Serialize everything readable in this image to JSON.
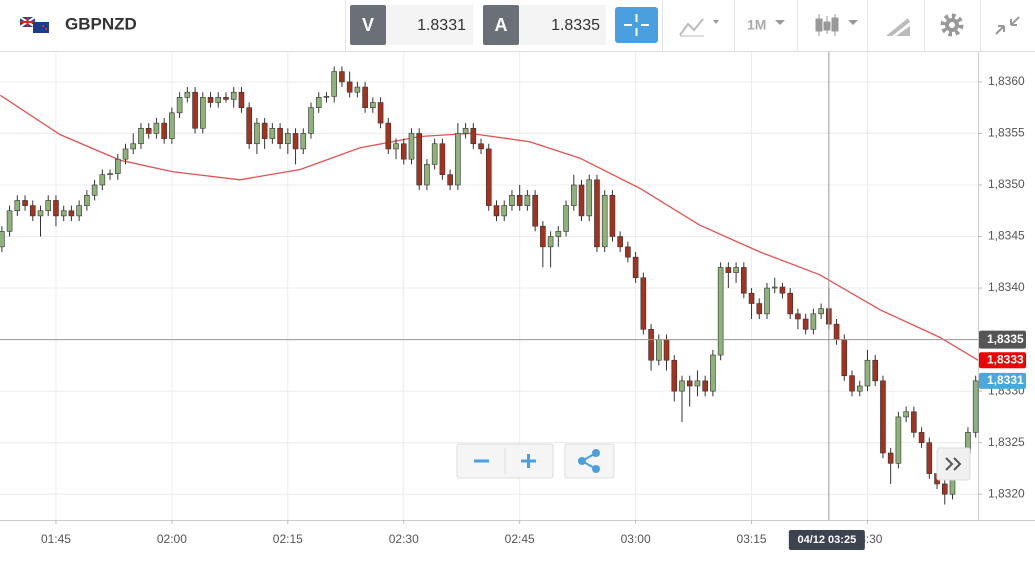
{
  "header": {
    "symbol": "GBPNZD",
    "bid": {
      "label": "V",
      "value": "1.8331"
    },
    "ask": {
      "label": "A",
      "value": "1.8335"
    },
    "timeframe": "1M"
  },
  "chart_data": {
    "type": "candlestick",
    "up_color": "#8db37a",
    "down_color": "#a5321e",
    "candles": [
      [
        1.8344,
        1.8346,
        1.83435,
        1.83455
      ],
      [
        1.83455,
        1.8348,
        1.8345,
        1.83475
      ],
      [
        1.83475,
        1.8349,
        1.8347,
        1.83485
      ],
      [
        1.83485,
        1.8349,
        1.83475,
        1.8348
      ],
      [
        1.8348,
        1.83485,
        1.83465,
        1.8347
      ],
      [
        1.8347,
        1.8348,
        1.8345,
        1.83475
      ],
      [
        1.83475,
        1.8349,
        1.8347,
        1.83485
      ],
      [
        1.83485,
        1.8349,
        1.8346,
        1.8347
      ],
      [
        1.8347,
        1.8348,
        1.83465,
        1.83475
      ],
      [
        1.83475,
        1.8348,
        1.83465,
        1.8347
      ],
      [
        1.8347,
        1.83485,
        1.83465,
        1.8348
      ],
      [
        1.8348,
        1.83495,
        1.83475,
        1.8349
      ],
      [
        1.8349,
        1.83505,
        1.83485,
        1.835
      ],
      [
        1.835,
        1.83515,
        1.83495,
        1.8351
      ],
      [
        1.8351,
        1.83515,
        1.83505,
        1.83511
      ],
      [
        1.83511,
        1.8353,
        1.83505,
        1.83525
      ],
      [
        1.83525,
        1.8354,
        1.8352,
        1.83535
      ],
      [
        1.83535,
        1.8355,
        1.8353,
        1.8354
      ],
      [
        1.8354,
        1.8356,
        1.83535,
        1.83555
      ],
      [
        1.83555,
        1.8356,
        1.83545,
        1.8355
      ],
      [
        1.8355,
        1.83565,
        1.83545,
        1.8356
      ],
      [
        1.8356,
        1.83565,
        1.8354,
        1.83545
      ],
      [
        1.83545,
        1.83575,
        1.8354,
        1.8357
      ],
      [
        1.8357,
        1.8359,
        1.83565,
        1.83585
      ],
      [
        1.83585,
        1.83595,
        1.8358,
        1.8359
      ],
      [
        1.8359,
        1.83595,
        1.8355,
        1.83555
      ],
      [
        1.83555,
        1.8359,
        1.8355,
        1.83585
      ],
      [
        1.83585,
        1.8359,
        1.83575,
        1.8358
      ],
      [
        1.8358,
        1.8359,
        1.83575,
        1.83585
      ],
      [
        1.83585,
        1.8359,
        1.8358,
        1.83583
      ],
      [
        1.83583,
        1.83595,
        1.83575,
        1.8359
      ],
      [
        1.8359,
        1.83595,
        1.8357,
        1.83575
      ],
      [
        1.83575,
        1.8358,
        1.83535,
        1.8354
      ],
      [
        1.8354,
        1.83565,
        1.8353,
        1.8356
      ],
      [
        1.8356,
        1.83565,
        1.83535,
        1.83545
      ],
      [
        1.83545,
        1.8356,
        1.8354,
        1.83555
      ],
      [
        1.83555,
        1.8356,
        1.83535,
        1.8354
      ],
      [
        1.8354,
        1.83555,
        1.8353,
        1.8355
      ],
      [
        1.8355,
        1.83555,
        1.8352,
        1.83535
      ],
      [
        1.83535,
        1.83555,
        1.8353,
        1.8355
      ],
      [
        1.8355,
        1.8358,
        1.83545,
        1.83575
      ],
      [
        1.83575,
        1.8359,
        1.8357,
        1.83585
      ],
      [
        1.83585,
        1.8359,
        1.8358,
        1.83586
      ],
      [
        1.83586,
        1.83615,
        1.8358,
        1.8361
      ],
      [
        1.8361,
        1.83615,
        1.83595,
        1.836
      ],
      [
        1.836,
        1.8361,
        1.83585,
        1.8359
      ],
      [
        1.8359,
        1.836,
        1.83585,
        1.83595
      ],
      [
        1.83595,
        1.836,
        1.8357,
        1.83575
      ],
      [
        1.83575,
        1.83585,
        1.8357,
        1.8358
      ],
      [
        1.8358,
        1.83585,
        1.83555,
        1.8356
      ],
      [
        1.8356,
        1.83565,
        1.8353,
        1.83535
      ],
      [
        1.83535,
        1.83545,
        1.83525,
        1.8354
      ],
      [
        1.8354,
        1.83545,
        1.8352,
        1.83525
      ],
      [
        1.83525,
        1.83555,
        1.8352,
        1.8355
      ],
      [
        1.8355,
        1.83555,
        1.83495,
        1.835
      ],
      [
        1.835,
        1.83525,
        1.83495,
        1.8352
      ],
      [
        1.8352,
        1.83545,
        1.83515,
        1.8354
      ],
      [
        1.8354,
        1.83545,
        1.83505,
        1.8351
      ],
      [
        1.8351,
        1.83515,
        1.83495,
        1.835
      ],
      [
        1.835,
        1.8356,
        1.83495,
        1.8355
      ],
      [
        1.8355,
        1.8356,
        1.83545,
        1.83555
      ],
      [
        1.83555,
        1.8356,
        1.83535,
        1.8354
      ],
      [
        1.8354,
        1.83545,
        1.8353,
        1.83535
      ],
      [
        1.83535,
        1.8354,
        1.83475,
        1.8348
      ],
      [
        1.8348,
        1.83485,
        1.83465,
        1.8347
      ],
      [
        1.8347,
        1.83485,
        1.83465,
        1.8348
      ],
      [
        1.8348,
        1.83495,
        1.83475,
        1.8349
      ],
      [
        1.8349,
        1.835,
        1.83475,
        1.8348
      ],
      [
        1.8348,
        1.83495,
        1.83475,
        1.8349
      ],
      [
        1.8349,
        1.83495,
        1.83455,
        1.8346
      ],
      [
        1.8346,
        1.83465,
        1.8342,
        1.8344
      ],
      [
        1.8344,
        1.83455,
        1.8342,
        1.8345
      ],
      [
        1.8345,
        1.8346,
        1.8344,
        1.83455
      ],
      [
        1.83455,
        1.83485,
        1.8345,
        1.8348
      ],
      [
        1.8348,
        1.8351,
        1.83475,
        1.835
      ],
      [
        1.835,
        1.83505,
        1.83465,
        1.8347
      ],
      [
        1.8347,
        1.8351,
        1.83465,
        1.83505
      ],
      [
        1.83505,
        1.8351,
        1.83435,
        1.8344
      ],
      [
        1.8344,
        1.83495,
        1.83435,
        1.8349
      ],
      [
        1.8349,
        1.83495,
        1.83445,
        1.8345
      ],
      [
        1.8345,
        1.83455,
        1.83435,
        1.8344
      ],
      [
        1.8344,
        1.83445,
        1.83425,
        1.8343
      ],
      [
        1.8343,
        1.83435,
        1.83405,
        1.8341
      ],
      [
        1.8341,
        1.83415,
        1.83355,
        1.8336
      ],
      [
        1.8336,
        1.83365,
        1.8332,
        1.8333
      ],
      [
        1.8333,
        1.83355,
        1.83325,
        1.8335
      ],
      [
        1.8335,
        1.83355,
        1.8332,
        1.8333
      ],
      [
        1.8333,
        1.83335,
        1.8329,
        1.833
      ],
      [
        1.833,
        1.83315,
        1.8327,
        1.8331
      ],
      [
        1.8331,
        1.83315,
        1.83285,
        1.83305
      ],
      [
        1.83305,
        1.8332,
        1.83295,
        1.8331
      ],
      [
        1.8331,
        1.83315,
        1.83295,
        1.833
      ],
      [
        1.833,
        1.8334,
        1.83295,
        1.83335
      ],
      [
        1.83335,
        1.83425,
        1.8333,
        1.8342
      ],
      [
        1.8342,
        1.83425,
        1.834,
        1.83415
      ],
      [
        1.83415,
        1.83425,
        1.83405,
        1.8342
      ],
      [
        1.8342,
        1.83425,
        1.8339,
        1.83395
      ],
      [
        1.83395,
        1.834,
        1.8337,
        1.83385
      ],
      [
        1.83385,
        1.8339,
        1.8337,
        1.83375
      ],
      [
        1.83375,
        1.83405,
        1.8337,
        1.834
      ],
      [
        1.834,
        1.8341,
        1.83395,
        1.83401
      ],
      [
        1.83401,
        1.83405,
        1.8339,
        1.83395
      ],
      [
        1.83395,
        1.834,
        1.8337,
        1.83375
      ],
      [
        1.83375,
        1.8338,
        1.8336,
        1.8337
      ],
      [
        1.8337,
        1.83375,
        1.83355,
        1.8336
      ],
      [
        1.8336,
        1.8338,
        1.83355,
        1.83375
      ],
      [
        1.83375,
        1.83385,
        1.8337,
        1.8338
      ],
      [
        1.8338,
        1.834,
        1.8336,
        1.83365
      ],
      [
        1.83365,
        1.8337,
        1.83345,
        1.8335
      ],
      [
        1.8335,
        1.83355,
        1.8331,
        1.83315
      ],
      [
        1.83315,
        1.8332,
        1.83295,
        1.833
      ],
      [
        1.833,
        1.8331,
        1.83295,
        1.83305
      ],
      [
        1.83305,
        1.8334,
        1.833,
        1.8333
      ],
      [
        1.8333,
        1.83335,
        1.83305,
        1.8331
      ],
      [
        1.8331,
        1.83315,
        1.83235,
        1.8324
      ],
      [
        1.8324,
        1.83245,
        1.8321,
        1.8323
      ],
      [
        1.8323,
        1.8328,
        1.83225,
        1.83275
      ],
      [
        1.83275,
        1.83285,
        1.8327,
        1.8328
      ],
      [
        1.8328,
        1.83285,
        1.83255,
        1.8326
      ],
      [
        1.8326,
        1.83265,
        1.83245,
        1.8325
      ],
      [
        1.8325,
        1.83255,
        1.83215,
        1.8322
      ],
      [
        1.8322,
        1.83225,
        1.83205,
        1.8321
      ],
      [
        1.8321,
        1.83215,
        1.8319,
        1.832
      ],
      [
        1.832,
        1.83225,
        1.83195,
        1.8322
      ],
      [
        1.8322,
        1.83245,
        1.83215,
        1.8324
      ],
      [
        1.8324,
        1.83265,
        1.83235,
        1.8326
      ],
      [
        1.8326,
        1.83315,
        1.83255,
        1.8331
      ]
    ],
    "ma": {
      "name": "MA",
      "color": "#e05252",
      "x": [
        -0.2,
        7.5,
        15.3,
        22,
        30.8,
        38.6,
        46.3,
        54.1,
        60.6,
        68.3,
        74.8,
        82.5,
        90.3,
        98.1,
        105.8,
        113.6,
        121.4,
        126.3
      ],
      "values": [
        1.83587,
        1.83549,
        1.83524,
        1.83513,
        1.83505,
        1.83515,
        1.83536,
        1.83547,
        1.8355,
        1.83542,
        1.83526,
        1.83497,
        1.83461,
        1.83435,
        1.83413,
        1.83379,
        1.83352,
        1.8333
      ]
    },
    "xlim": [
      -0.24,
      126.3
    ],
    "xticks": [
      {
        "value": 7,
        "label": "01:45"
      },
      {
        "value": 22,
        "label": "02:00"
      },
      {
        "value": 37,
        "label": "02:15"
      },
      {
        "value": 52,
        "label": "02:30"
      },
      {
        "value": 67,
        "label": "02:45"
      },
      {
        "value": 82,
        "label": "03:00"
      },
      {
        "value": 97,
        "label": "03:15"
      },
      {
        "value": 112,
        "label": "03:30"
      }
    ],
    "ylim": [
      1.83175,
      1.83629
    ],
    "yticks": [
      {
        "value": 1.832,
        "label": "1,8320"
      },
      {
        "value": 1.8325,
        "label": "1,8325"
      },
      {
        "value": 1.833,
        "label": "1,8330"
      },
      {
        "value": 1.8335,
        "label": "1,8335"
      },
      {
        "value": 1.834,
        "label": "1,8340"
      },
      {
        "value": 1.8345,
        "label": "1,8345"
      },
      {
        "value": 1.835,
        "label": "1,8350"
      },
      {
        "value": 1.8355,
        "label": "1,8355"
      },
      {
        "value": 1.836,
        "label": "1,8360"
      }
    ],
    "grid": true,
    "price_markers": [
      {
        "value": 1.8333,
        "label": "1,8333",
        "color": "#ee0000"
      },
      {
        "value": 1.8331,
        "label": "1,8331",
        "color": "#4aa8dc"
      }
    ],
    "crosshair": {
      "x": 107,
      "label": "04/12 03:25",
      "y": {
        "value": 1.8335,
        "label": "1,8335"
      }
    }
  }
}
